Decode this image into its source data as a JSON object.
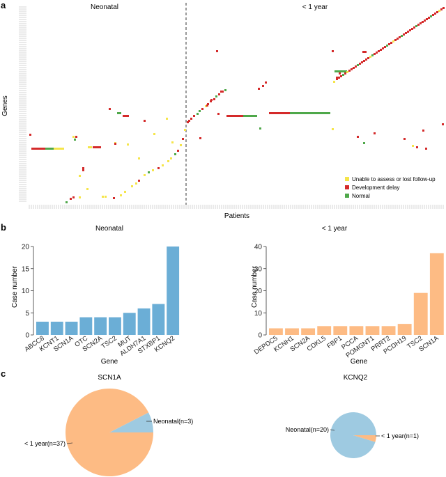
{
  "panel_labels": {
    "a": "a",
    "b": "b",
    "c": "c"
  },
  "colors": {
    "unable": "#f5e54a",
    "delay": "#d42a2a",
    "normal": "#4fa84a",
    "neonatal_bar": "#6baed6",
    "infant_bar": "#fdbb84",
    "pie_infant": "#fdbb84",
    "pie_neonatal": "#9ecae1"
  },
  "chart_data": [
    {
      "id": "heatmap",
      "type": "heatmap",
      "title_left": "Neonatal",
      "title_right": "< 1 year",
      "xlabel": "Patients",
      "ylabel": "Genes",
      "legend": [
        {
          "key": "unable",
          "label": "Unable to assess or lost follow-up"
        },
        {
          "key": "delay",
          "label": "Development delay"
        },
        {
          "key": "normal",
          "label": "Normal"
        }
      ]
    },
    {
      "id": "bar_neonatal",
      "type": "bar",
      "title": "Neonatal",
      "xlabel": "Gene",
      "ylabel": "Case number",
      "ylim": [
        0,
        20
      ],
      "yticks": [
        0,
        5,
        10,
        15,
        20
      ],
      "categories": [
        "ABCC8",
        "KCNT1",
        "SCN1A",
        "OTC",
        "SCN2A",
        "TSC2",
        "MUT",
        "ALDH7A1",
        "STXBP1",
        "KCNQ2"
      ],
      "values": [
        3,
        3,
        3,
        4,
        4,
        4,
        5,
        6,
        7,
        20
      ]
    },
    {
      "id": "bar_infant",
      "type": "bar",
      "title": "< 1 year",
      "xlabel": "Gene",
      "ylabel": "Case number",
      "ylim": [
        0,
        40
      ],
      "yticks": [
        0,
        10,
        20,
        30,
        40
      ],
      "categories": [
        "DEPDC5",
        "KCNH1",
        "SCN2A",
        "CDKL5",
        "FBP1",
        "PCCA",
        "POMGNT1",
        "PRRT2",
        "PCDH19",
        "TSC2",
        "SCN1A"
      ],
      "values": [
        3,
        3,
        3,
        4,
        4,
        4,
        4,
        4,
        5,
        19,
        37
      ]
    },
    {
      "id": "pie_scn1a",
      "type": "pie",
      "title": "SCN1A",
      "slices": [
        {
          "label": "< 1 year(n=37)",
          "value": 37,
          "key": "pie_infant"
        },
        {
          "label": "Neonatal(n=3)",
          "value": 3,
          "key": "pie_neonatal"
        }
      ]
    },
    {
      "id": "pie_kcnq2",
      "type": "pie",
      "title": "KCNQ2",
      "slices": [
        {
          "label": "Neonatal(n=20)",
          "value": 20,
          "key": "pie_neonatal"
        },
        {
          "label": "< 1 year(n=1)",
          "value": 1,
          "key": "pie_infant"
        }
      ]
    }
  ]
}
